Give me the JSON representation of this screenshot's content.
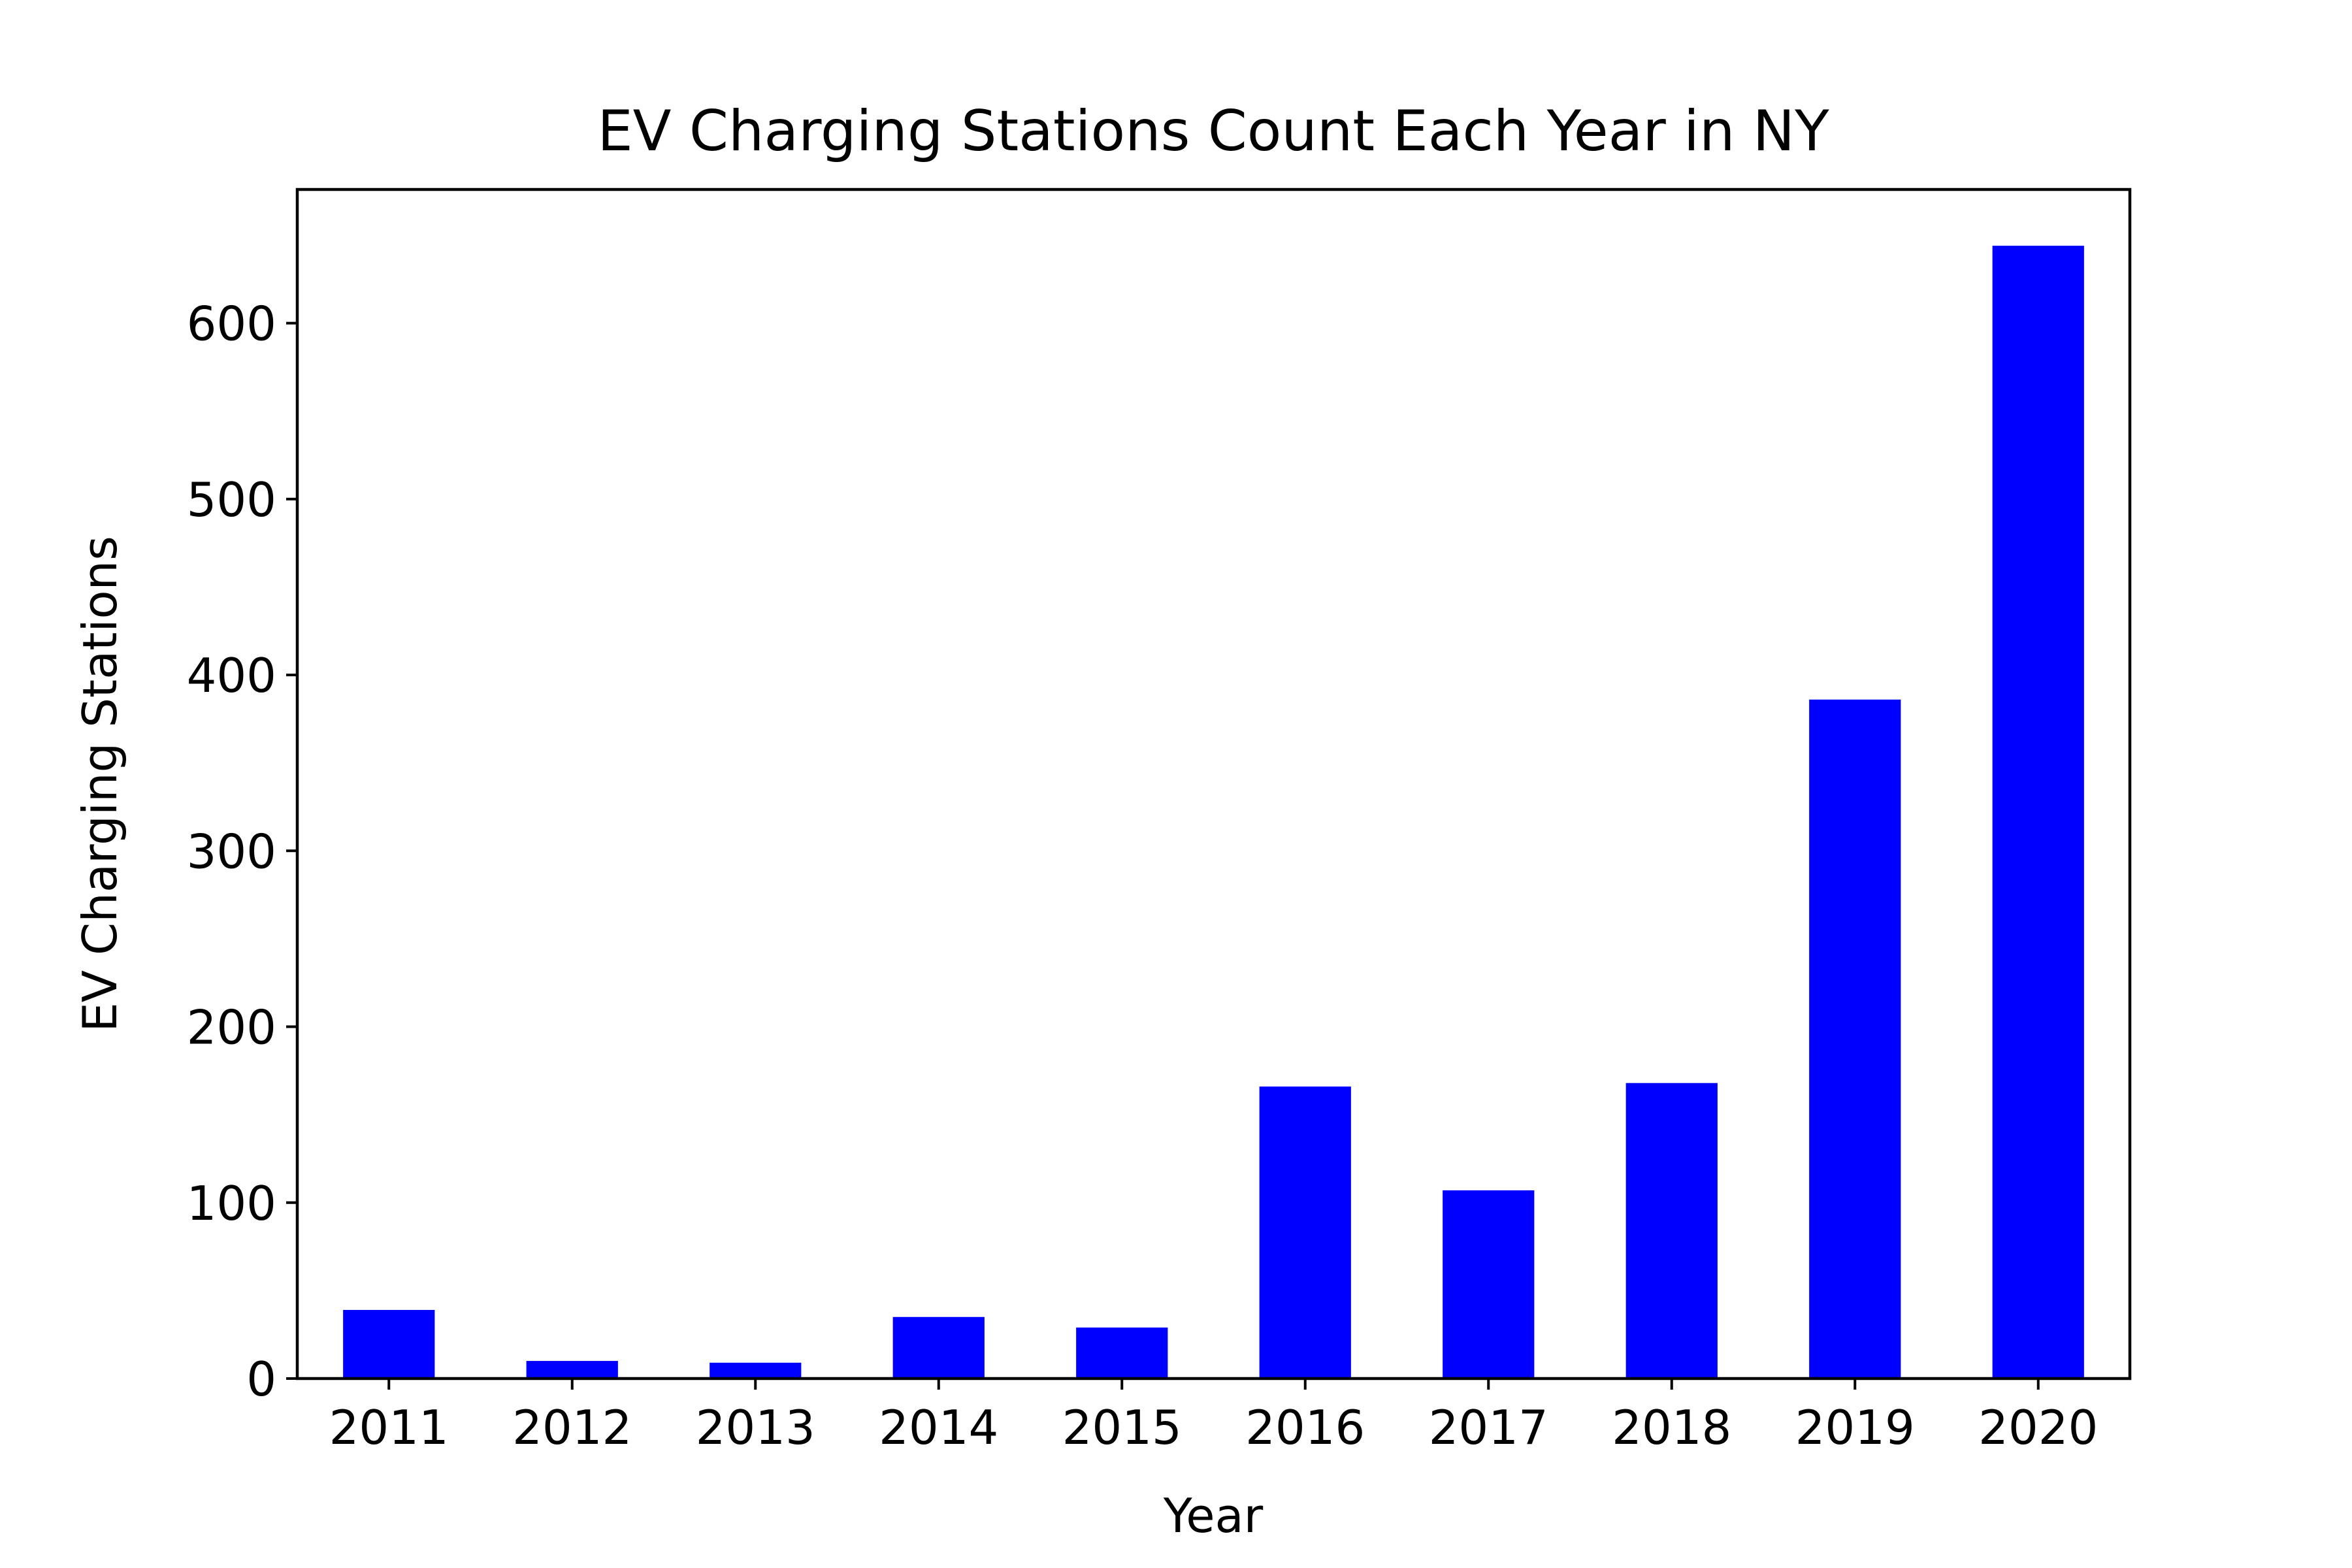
{
  "chart_data": {
    "type": "bar",
    "title": "EV Charging Stations Count Each Year in NY",
    "xlabel": "Year",
    "ylabel": "EV Charging Stations",
    "categories": [
      "2011",
      "2012",
      "2013",
      "2014",
      "2015",
      "2016",
      "2017",
      "2018",
      "2019",
      "2020"
    ],
    "values": [
      39,
      10,
      9,
      35,
      29,
      166,
      107,
      168,
      386,
      644
    ],
    "ylim": [
      0,
      676
    ],
    "yticks": [
      0,
      100,
      200,
      300,
      400,
      500,
      600
    ],
    "grid": false,
    "legend": false,
    "bar_color": "#0000ff"
  }
}
